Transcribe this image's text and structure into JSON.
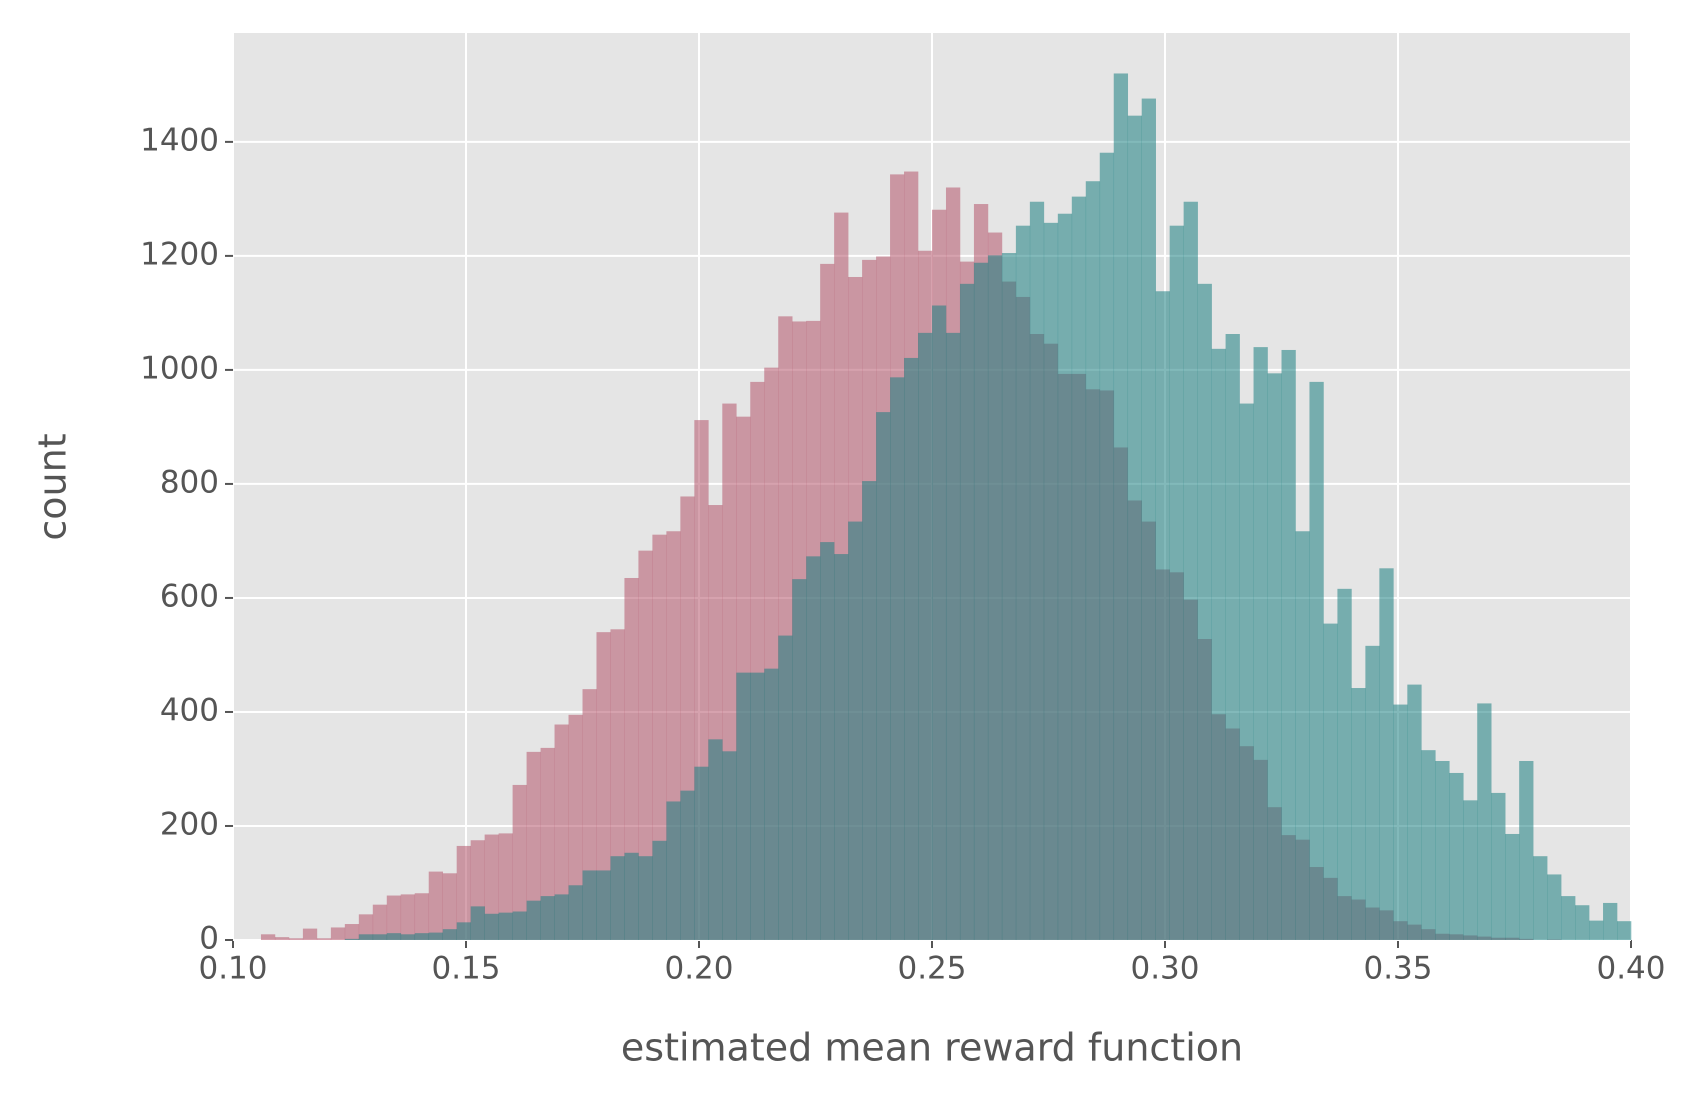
{
  "chart_data": {
    "type": "histogram",
    "xlabel": "estimated mean reward function",
    "ylabel": "count",
    "bins": [
      0.1,
      0.103,
      0.106,
      0.109,
      0.112,
      0.115,
      0.118,
      0.121,
      0.124,
      0.127,
      0.13,
      0.133,
      0.136,
      0.139,
      0.142,
      0.145,
      0.148,
      0.151,
      0.154,
      0.157,
      0.16,
      0.163,
      0.166,
      0.169,
      0.172,
      0.175,
      0.178,
      0.181,
      0.184,
      0.187,
      0.19,
      0.193,
      0.196,
      0.199,
      0.202,
      0.205,
      0.208,
      0.211,
      0.214,
      0.217,
      0.22,
      0.223,
      0.226,
      0.229,
      0.232,
      0.235,
      0.238,
      0.241,
      0.244,
      0.247,
      0.25,
      0.253,
      0.256,
      0.259,
      0.262,
      0.265,
      0.268,
      0.271,
      0.274,
      0.277,
      0.28,
      0.283,
      0.286,
      0.289,
      0.292,
      0.295,
      0.298,
      0.301,
      0.304,
      0.307,
      0.31,
      0.313,
      0.316,
      0.319,
      0.322,
      0.325,
      0.328,
      0.331,
      0.334,
      0.337,
      0.34,
      0.343,
      0.346,
      0.349,
      0.352,
      0.355,
      0.358,
      0.361,
      0.364,
      0.367,
      0.37,
      0.373,
      0.376,
      0.379,
      0.382,
      0.385,
      0.388,
      0.391,
      0.394,
      0.397,
      0.4
    ],
    "series": [
      {
        "color": "#b5566c",
        "values": [
          0,
          0,
          10,
          5,
          3,
          20,
          3,
          22,
          28,
          45,
          62,
          78,
          80,
          82,
          120,
          117,
          165,
          175,
          185,
          187,
          272,
          330,
          337,
          378,
          395,
          440,
          540,
          545,
          635,
          683,
          711,
          717,
          778,
          912,
          763,
          941,
          918,
          979,
          1004,
          1094,
          1085,
          1086,
          1186,
          1276,
          1163,
          1193,
          1199,
          1343,
          1348,
          1209,
          1281,
          1320,
          1190,
          1291,
          1241,
          1155,
          1128,
          1063,
          1046,
          993,
          993,
          966,
          964,
          864,
          771,
          734,
          650,
          645,
          597,
          528,
          396,
          371,
          340,
          316,
          233,
          184,
          176,
          128,
          109,
          77,
          71,
          57,
          52,
          33,
          27,
          19,
          11,
          10,
          8,
          6,
          4,
          4,
          2,
          0,
          1,
          0,
          0,
          0,
          0,
          0
        ]
      },
      {
        "color": "#1b7f82",
        "values": [
          0,
          0,
          0,
          0,
          0,
          0,
          0,
          0,
          2,
          10,
          10,
          12,
          10,
          12,
          13,
          19,
          31,
          59,
          46,
          48,
          50,
          69,
          77,
          80,
          96,
          122,
          122,
          147,
          153,
          147,
          174,
          243,
          262,
          304,
          352,
          331,
          469,
          469,
          476,
          534,
          633,
          673,
          698,
          677,
          734,
          805,
          926,
          987,
          1021,
          1065,
          1113,
          1065,
          1151,
          1188,
          1201,
          1205,
          1253,
          1295,
          1258,
          1274,
          1304,
          1331,
          1381,
          1520,
          1446,
          1476,
          1138,
          1253,
          1295,
          1151,
          1037,
          1063,
          941,
          1040,
          994,
          1035,
          717,
          979,
          555,
          616,
          442,
          516,
          652,
          413,
          448,
          333,
          314,
          293,
          245,
          415,
          258,
          186,
          314,
          147,
          115,
          77,
          61,
          34,
          65,
          33
        ]
      }
    ],
    "opacity": 0.55,
    "xlim": [
      0.1,
      0.4
    ],
    "xticks": [
      {
        "value": 0.1,
        "label": "0.10"
      },
      {
        "value": 0.15,
        "label": "0.15"
      },
      {
        "value": 0.2,
        "label": "0.20"
      },
      {
        "value": 0.25,
        "label": "0.25"
      },
      {
        "value": 0.3,
        "label": "0.30"
      },
      {
        "value": 0.35,
        "label": "0.35"
      },
      {
        "value": 0.4,
        "label": "0.40"
      }
    ],
    "ylim": [
      0,
      1591
    ],
    "yticks": [
      0,
      200,
      400,
      600,
      800,
      1000,
      1200,
      1400
    ],
    "grid": true,
    "background": "#e5e5e5"
  }
}
